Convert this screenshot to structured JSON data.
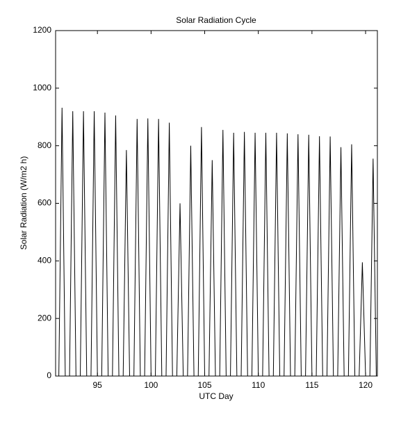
{
  "chart_data": {
    "type": "line",
    "title": "Solar Radiation Cycle",
    "x_label": "UTC Day",
    "y_label": "Solar Radiation (W/m2 h)",
    "xlim": [
      91.1,
      121.1
    ],
    "ylim": [
      0,
      1200
    ],
    "xticks": [
      95,
      100,
      105,
      110,
      115,
      120
    ],
    "yticks": [
      0,
      200,
      400,
      600,
      800,
      1000,
      1200
    ],
    "grid": false,
    "x": [
      91.4,
      91.7,
      92.0,
      92.4,
      92.7,
      93.0,
      93.4,
      93.7,
      94.0,
      94.4,
      94.7,
      95.0,
      95.4,
      95.7,
      96.0,
      96.4,
      96.7,
      97.0,
      97.4,
      97.7,
      98.0,
      98.4,
      98.7,
      99.0,
      99.4,
      99.7,
      100.0,
      100.4,
      100.7,
      101.0,
      101.4,
      101.7,
      102.0,
      102.4,
      102.7,
      103.0,
      103.4,
      103.7,
      104.0,
      104.4,
      104.7,
      105.0,
      105.4,
      105.7,
      106.0,
      106.4,
      106.7,
      107.0,
      107.4,
      107.7,
      108.0,
      108.4,
      108.7,
      109.0,
      109.4,
      109.7,
      110.0,
      110.4,
      110.7,
      111.0,
      111.4,
      111.7,
      112.0,
      112.4,
      112.7,
      113.0,
      113.4,
      113.7,
      114.0,
      114.4,
      114.7,
      115.0,
      115.4,
      115.7,
      116.0,
      116.4,
      116.7,
      117.0,
      117.4,
      117.7,
      118.0,
      118.4,
      118.7,
      119.0,
      119.4,
      119.7,
      120.0,
      120.4,
      120.7,
      121.0
    ],
    "series": [
      {
        "name": "Solar Radiation",
        "color": "#000000",
        "values": [
          0,
          932,
          0,
          0,
          920,
          0,
          0,
          920,
          0,
          0,
          920,
          0,
          0,
          915,
          0,
          0,
          905,
          0,
          0,
          785,
          0,
          0,
          893,
          0,
          0,
          895,
          0,
          0,
          893,
          0,
          0,
          880,
          0,
          0,
          600,
          0,
          0,
          800,
          0,
          0,
          865,
          0,
          0,
          750,
          0,
          0,
          855,
          0,
          0,
          845,
          0,
          0,
          848,
          0,
          0,
          845,
          0,
          0,
          845,
          0,
          0,
          845,
          0,
          0,
          843,
          0,
          0,
          840,
          0,
          0,
          838,
          0,
          0,
          833,
          0,
          0,
          832,
          0,
          0,
          795,
          0,
          0,
          805,
          0,
          0,
          395,
          0,
          0,
          755,
          0
        ]
      }
    ]
  }
}
